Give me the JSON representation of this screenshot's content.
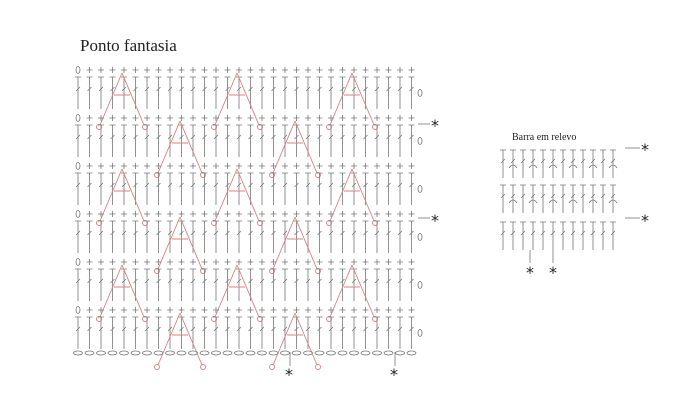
{
  "main": {
    "title": "Ponto fantasia",
    "markers": [
      "*",
      "*",
      "*",
      "*"
    ]
  },
  "inset": {
    "title": "Barra em relevo",
    "markers": [
      "*",
      "*",
      "*",
      "*"
    ]
  }
}
